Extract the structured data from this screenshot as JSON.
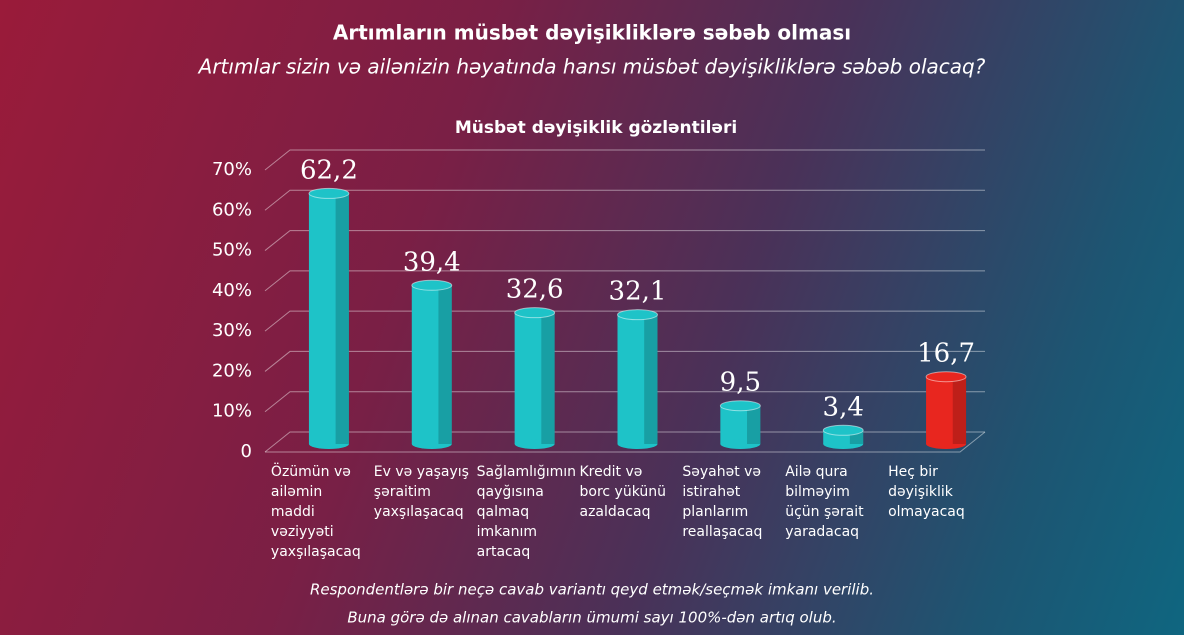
{
  "chart_data": {
    "type": "bar",
    "title": "Artımların müsbət dəyişikliklərə səbəb olması",
    "subtitle": "Artımlar sizin və ailənizin həyatında hansı müsbət dəyişikliklərə səbəb olacaq?",
    "chart_title": "Müsbət dəyişiklik gözləntiləri",
    "categories": [
      "Özümün və ailəmin maddi vəziyyəti yaxşılaşacaq",
      "Ev və yaşayış şəraitim yaxşılaşacaq",
      "Sağlamlığımın qayğısına qalmaq imkanım artacaq",
      "Kredit və borc yükünü azaldacaq",
      "Səyahət və istirahət planlarım reallaşacaq",
      "Ailə qura bilməyim üçün şərait yaradacaq",
      "Heç bir dəyişiklik olmayacaq"
    ],
    "values": [
      62.2,
      39.4,
      32.6,
      32.1,
      9.5,
      3.4,
      16.7
    ],
    "value_labels": [
      "62,2",
      "39,4",
      "32,6",
      "32,1",
      "9,5",
      "3,4",
      "16,7"
    ],
    "colors": [
      "#1ec3c8",
      "#1ec3c8",
      "#1ec3c8",
      "#1ec3c8",
      "#1ec3c8",
      "#1ec3c8",
      "#e8261f"
    ],
    "ylim": [
      0,
      70
    ],
    "yticks": [
      0,
      {
        "value": 10,
        "label": "10%"
      },
      {
        "value": 20,
        "label": "20%"
      },
      {
        "value": 30,
        "label": "30%"
      },
      {
        "value": 40,
        "label": "40%"
      },
      {
        "value": 50,
        "label": "50%"
      },
      {
        "value": 60,
        "label": "60%"
      },
      {
        "value": 70,
        "label": "70%"
      }
    ],
    "grid": true,
    "notes": [
      "Respondentlərə bir neçə cavab variantı qeyd etmək/seçmək imkanı verilib.",
      "Buna görə də alınan cavabların ümumi sayı 100%-dən artıq olub."
    ]
  }
}
